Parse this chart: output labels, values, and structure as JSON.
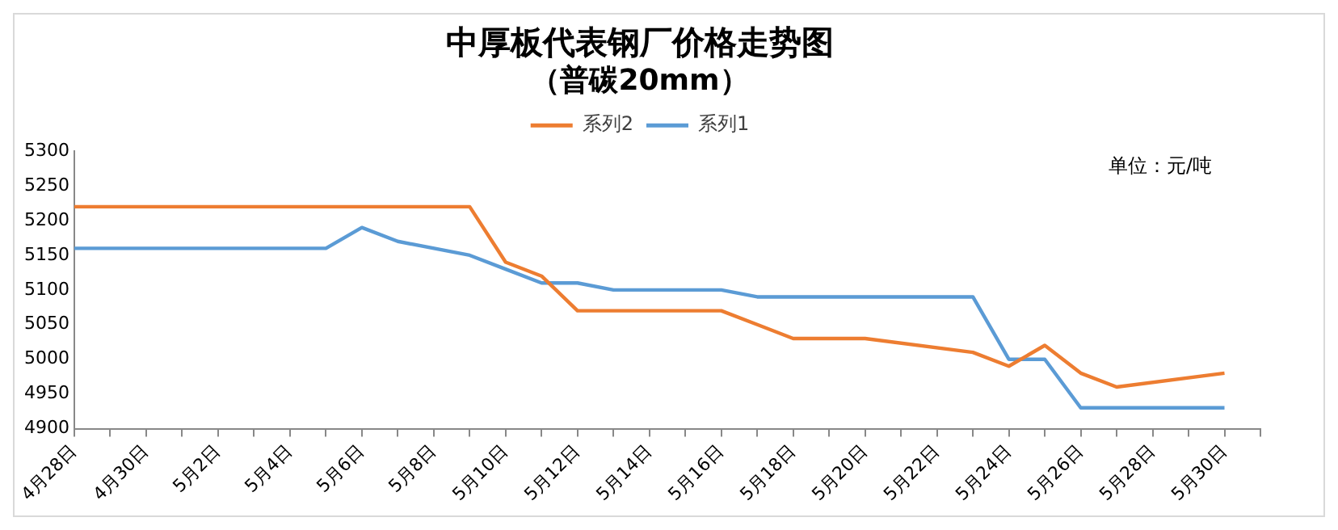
{
  "chart_data": {
    "type": "line",
    "title": "中厚板代表钢厂价格走势图",
    "subtitle": "（普碳20mm）",
    "annotations": [
      "单位：元/吨"
    ],
    "x": [
      "--04-28",
      "--04-29",
      "--05-05",
      "--05-06",
      "--05-07",
      "--05-09",
      "--05-10",
      "--05-11",
      "--05-12",
      "--05-13",
      "--05-14",
      "--05-15",
      "--05-16",
      "--05-17",
      "--05-18",
      "--05-19",
      "--05-20",
      "--05-23",
      "--05-24",
      "--05-25",
      "--05-26",
      "--05-27",
      "--05-30"
    ],
    "series": [
      {
        "name": "系列2",
        "color": "#ed7d31",
        "values": [
          5220,
          5220,
          5220,
          5220,
          5220,
          5220,
          5140,
          5120,
          5070,
          5070,
          5070,
          5070,
          5070,
          5050,
          5030,
          5030,
          5030,
          5010,
          4990,
          5020,
          4980,
          4960,
          4980
        ]
      },
      {
        "name": "系列1",
        "color": "#5b9bd5",
        "values": [
          5160,
          5160,
          5160,
          5190,
          5170,
          5150,
          5130,
          5110,
          5110,
          5100,
          5100,
          5100,
          5100,
          5090,
          5090,
          5090,
          5090,
          5090,
          5000,
          5000,
          4930,
          4930,
          4930
        ]
      }
    ],
    "xlim": [
      "--04-28",
      "--05-31"
    ],
    "xticks": [
      {
        "value": "--04-28",
        "label": "4月28日"
      },
      {
        "value": "--04-29",
        "label": null
      },
      {
        "value": "--04-30",
        "label": "4月30日"
      },
      {
        "value": "--05-01",
        "label": null
      },
      {
        "value": "--05-02",
        "label": "5月2日"
      },
      {
        "value": "--05-03",
        "label": null
      },
      {
        "value": "--05-04",
        "label": "5月4日"
      },
      {
        "value": "--05-05",
        "label": null
      },
      {
        "value": "--05-06",
        "label": "5月6日"
      },
      {
        "value": "--05-07",
        "label": null
      },
      {
        "value": "--05-08",
        "label": "5月8日"
      },
      {
        "value": "--05-09",
        "label": null
      },
      {
        "value": "--05-10",
        "label": "5月10日"
      },
      {
        "value": "--05-11",
        "label": null
      },
      {
        "value": "--05-12",
        "label": "5月12日"
      },
      {
        "value": "--05-13",
        "label": null
      },
      {
        "value": "--05-14",
        "label": "5月14日"
      },
      {
        "value": "--05-15",
        "label": null
      },
      {
        "value": "--05-16",
        "label": "5月16日"
      },
      {
        "value": "--05-17",
        "label": null
      },
      {
        "value": "--05-18",
        "label": "5月18日"
      },
      {
        "value": "--05-19",
        "label": null
      },
      {
        "value": "--05-20",
        "label": "5月20日"
      },
      {
        "value": "--05-21",
        "label": null
      },
      {
        "value": "--05-22",
        "label": "5月22日"
      },
      {
        "value": "--05-23",
        "label": null
      },
      {
        "value": "--05-24",
        "label": "5月24日"
      },
      {
        "value": "--05-25",
        "label": null
      },
      {
        "value": "--05-26",
        "label": "5月26日"
      },
      {
        "value": "--05-27",
        "label": null
      },
      {
        "value": "--05-28",
        "label": "5月28日"
      },
      {
        "value": "--05-29",
        "label": null
      },
      {
        "value": "--05-30",
        "label": "5月30日"
      },
      {
        "value": "--05-31",
        "label": null
      }
    ],
    "ylim": [
      4900,
      5300
    ],
    "yticks": [
      4900,
      4950,
      5000,
      5050,
      5100,
      5150,
      5200,
      5250,
      5300
    ],
    "grid": false,
    "legend": "top",
    "marker": "none",
    "line_style": "solid"
  }
}
